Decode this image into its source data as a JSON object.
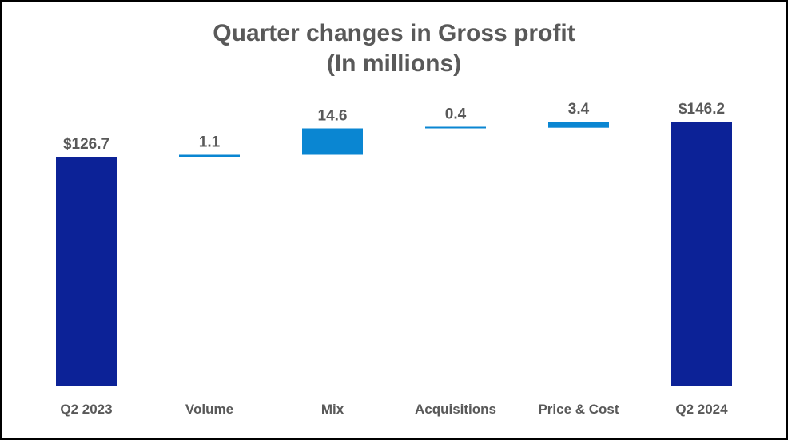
{
  "chart_data": {
    "type": "bar",
    "subtype": "waterfall",
    "title": "Quarter changes in Gross profit",
    "subtitle": "(In millions)",
    "categories": [
      "Q2 2023",
      "Volume",
      "Mix",
      "Acquisitions",
      "Price & Cost",
      "Q2 2024"
    ],
    "values": [
      126.7,
      1.1,
      14.6,
      0.4,
      3.4,
      146.2
    ],
    "value_labels": [
      "$126.7",
      "1.1",
      "14.6",
      "0.4",
      "3.4",
      "$146.2"
    ],
    "bar_kinds": [
      "total",
      "delta",
      "delta",
      "delta",
      "delta",
      "total"
    ],
    "xlabel": "",
    "ylabel": "",
    "ylim": [
      0,
      160
    ],
    "grid": false,
    "legend": "none",
    "colors": {
      "total": "#0C2297",
      "delta": "#0A86D2",
      "text": "#595959",
      "border": "#000000"
    }
  }
}
